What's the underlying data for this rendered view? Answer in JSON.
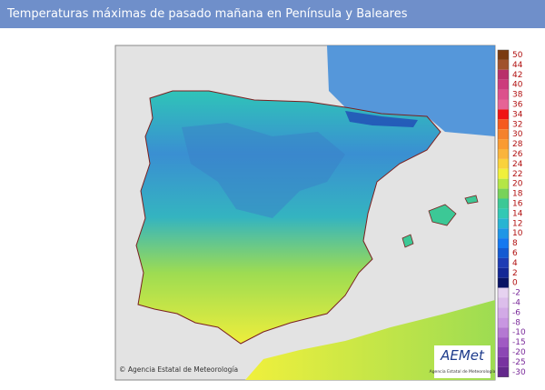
{
  "header": {
    "title": "Temperaturas máximas de pasado mañana en Península y Baleares"
  },
  "map": {
    "attribution": "© Agencia Estatal de Meteorología",
    "logo": {
      "name": "AEMet",
      "subtitle": "Agencia Estatal de Meteorología"
    }
  },
  "legend": {
    "items": [
      {
        "label": 50,
        "color": "#7a3b10"
      },
      {
        "label": 44,
        "color": "#a0522d"
      },
      {
        "label": 42,
        "color": "#b8306a"
      },
      {
        "label": 40,
        "color": "#cc3c7c"
      },
      {
        "label": 38,
        "color": "#dc508c"
      },
      {
        "label": 36,
        "color": "#e66496"
      },
      {
        "label": 34,
        "color": "#f01414"
      },
      {
        "label": 32,
        "color": "#f55a1e"
      },
      {
        "label": 30,
        "color": "#f5822d"
      },
      {
        "label": 28,
        "color": "#fa9b32"
      },
      {
        "label": 26,
        "color": "#fab43c"
      },
      {
        "label": 24,
        "color": "#fad23c"
      },
      {
        "label": 22,
        "color": "#f0f03c"
      },
      {
        "label": 20,
        "color": "#b4e646"
      },
      {
        "label": 18,
        "color": "#78d25a"
      },
      {
        "label": 16,
        "color": "#3cc896"
      },
      {
        "label": 14,
        "color": "#32c8b4"
      },
      {
        "label": 12,
        "color": "#28b4d2"
      },
      {
        "label": 10,
        "color": "#1e96e6"
      },
      {
        "label": 8,
        "color": "#1478f0"
      },
      {
        "label": 6,
        "color": "#145ad2"
      },
      {
        "label": 4,
        "color": "#1e3cb4"
      },
      {
        "label": 2,
        "color": "#142896"
      },
      {
        "label": 0,
        "color": "#0a1464"
      },
      {
        "label": -2,
        "color": "#e6d2f0"
      },
      {
        "label": -4,
        "color": "#dcbeeb"
      },
      {
        "label": -6,
        "color": "#d2aae6"
      },
      {
        "label": -8,
        "color": "#c896e1"
      },
      {
        "label": -10,
        "color": "#b478d2"
      },
      {
        "label": -15,
        "color": "#a05ac3"
      },
      {
        "label": -20,
        "color": "#8c46b4"
      },
      {
        "label": -25,
        "color": "#7832a0"
      },
      {
        "label": -30,
        "color": "#64288c"
      }
    ]
  }
}
